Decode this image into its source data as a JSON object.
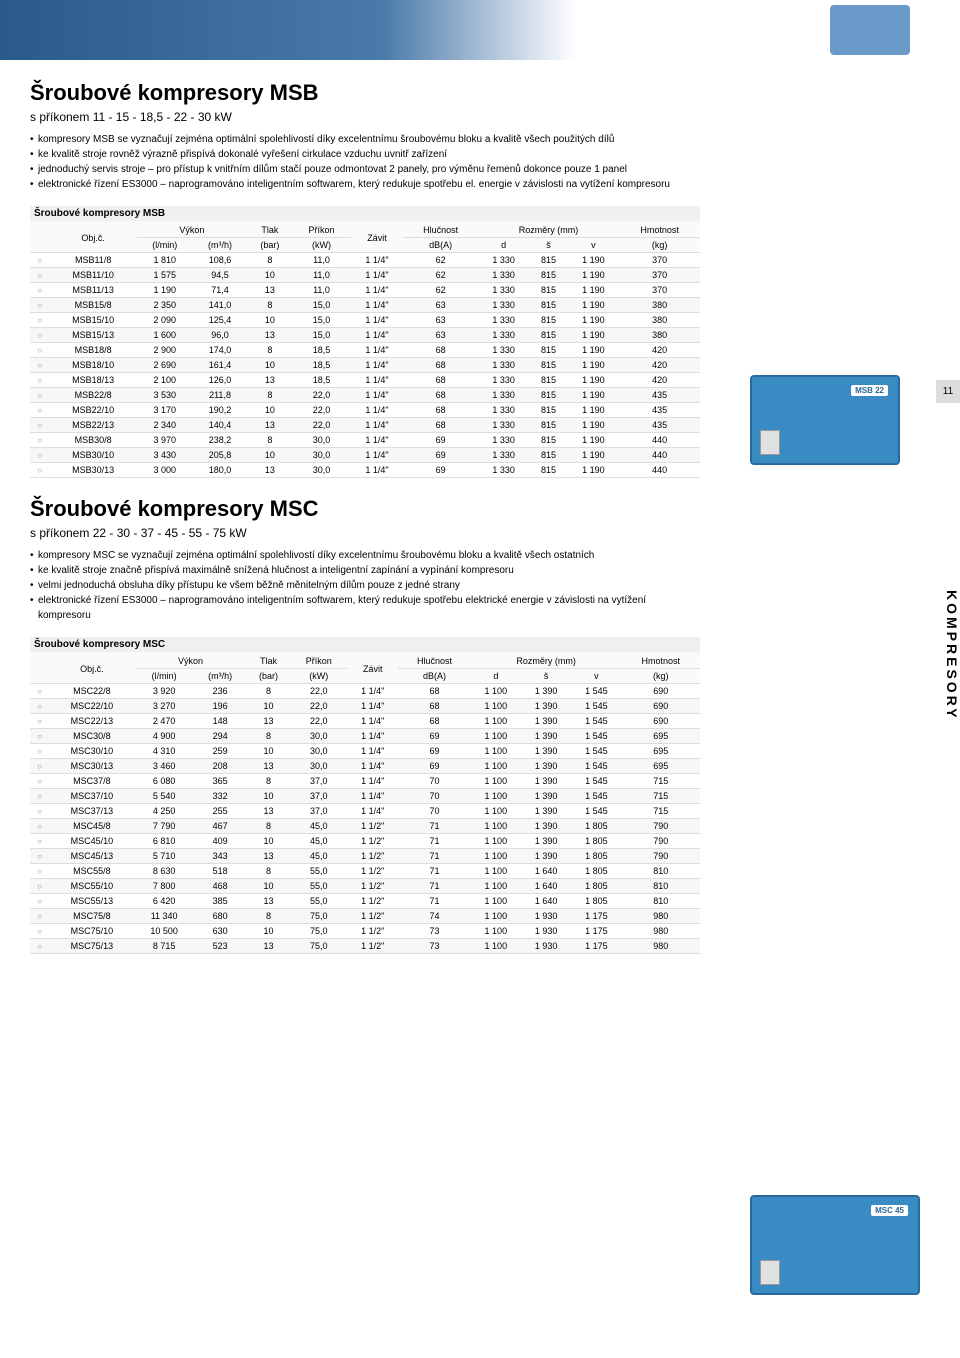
{
  "page_number": "11",
  "side_label": "KOMPRESORY",
  "msb": {
    "title": "Šroubové kompresory MSB",
    "subtitle": "s příkonem 11 - 15 - 18,5 - 22 - 30 kW",
    "bullets": [
      "kompresory MSB se vyznačují zejména optimální spolehlivostí díky excelentnímu šroubovému bloku a kvalitě všech použitých dílů",
      "ke kvalitě stroje rovněž výrazně přispívá dokonalé vyřešení cirkulace vzduchu uvnitř zařízení",
      "jednoduchý servis stroje – pro přístup k vnitřním dílům stačí pouze odmontovat 2 panely, pro výměnu řemenů dokonce pouze 1 panel",
      "elektronické řízení ES3000 – naprogramováno inteligentním softwarem, který redukuje spotřebu el. energie v závislosti na vytížení kompresoru"
    ],
    "table_title": "Šroubové kompresory MSB",
    "product_label": "MSB 22",
    "headers": {
      "objc": "Obj.č.",
      "vykon": "Výkon",
      "lmin": "(l/min)",
      "m3h": "(m³/h)",
      "tlak": "Tlak",
      "bar": "(bar)",
      "prikon": "Příkon",
      "kw": "(kW)",
      "zavit": "Závit",
      "hlucnost": "Hlučnost",
      "dba": "dB(A)",
      "rozmery": "Rozměry (mm)",
      "d": "d",
      "s": "š",
      "v": "v",
      "hmotnost": "Hmotnost",
      "kg": "(kg)"
    },
    "rows": [
      [
        "MSB11/8",
        "1 810",
        "108,6",
        "8",
        "11,0",
        "1 1/4\"",
        "62",
        "1 330",
        "815",
        "1 190",
        "370"
      ],
      [
        "MSB11/10",
        "1 575",
        "94,5",
        "10",
        "11,0",
        "1 1/4\"",
        "62",
        "1 330",
        "815",
        "1 190",
        "370"
      ],
      [
        "MSB11/13",
        "1 190",
        "71,4",
        "13",
        "11,0",
        "1 1/4\"",
        "62",
        "1 330",
        "815",
        "1 190",
        "370"
      ],
      [
        "MSB15/8",
        "2 350",
        "141,0",
        "8",
        "15,0",
        "1 1/4\"",
        "63",
        "1 330",
        "815",
        "1 190",
        "380"
      ],
      [
        "MSB15/10",
        "2 090",
        "125,4",
        "10",
        "15,0",
        "1 1/4\"",
        "63",
        "1 330",
        "815",
        "1 190",
        "380"
      ],
      [
        "MSB15/13",
        "1 600",
        "96,0",
        "13",
        "15,0",
        "1 1/4\"",
        "63",
        "1 330",
        "815",
        "1 190",
        "380"
      ],
      [
        "MSB18/8",
        "2 900",
        "174,0",
        "8",
        "18,5",
        "1 1/4\"",
        "68",
        "1 330",
        "815",
        "1 190",
        "420"
      ],
      [
        "MSB18/10",
        "2 690",
        "161,4",
        "10",
        "18,5",
        "1 1/4\"",
        "68",
        "1 330",
        "815",
        "1 190",
        "420"
      ],
      [
        "MSB18/13",
        "2 100",
        "126,0",
        "13",
        "18,5",
        "1 1/4\"",
        "68",
        "1 330",
        "815",
        "1 190",
        "420"
      ],
      [
        "MSB22/8",
        "3 530",
        "211,8",
        "8",
        "22,0",
        "1 1/4\"",
        "68",
        "1 330",
        "815",
        "1 190",
        "435"
      ],
      [
        "MSB22/10",
        "3 170",
        "190,2",
        "10",
        "22,0",
        "1 1/4\"",
        "68",
        "1 330",
        "815",
        "1 190",
        "435"
      ],
      [
        "MSB22/13",
        "2 340",
        "140,4",
        "13",
        "22,0",
        "1 1/4\"",
        "68",
        "1 330",
        "815",
        "1 190",
        "435"
      ],
      [
        "MSB30/8",
        "3 970",
        "238,2",
        "8",
        "30,0",
        "1 1/4\"",
        "69",
        "1 330",
        "815",
        "1 190",
        "440"
      ],
      [
        "MSB30/10",
        "3 430",
        "205,8",
        "10",
        "30,0",
        "1 1/4\"",
        "69",
        "1 330",
        "815",
        "1 190",
        "440"
      ],
      [
        "MSB30/13",
        "3 000",
        "180,0",
        "13",
        "30,0",
        "1 1/4\"",
        "69",
        "1 330",
        "815",
        "1 190",
        "440"
      ]
    ]
  },
  "msc": {
    "title": "Šroubové kompresory MSC",
    "subtitle": "s příkonem 22 - 30 - 37 - 45 - 55 - 75 kW",
    "bullets": [
      "kompresory MSC se vyznačují zejména optimální spolehlivostí díky excelentnímu šroubovému bloku a kvalitě všech ostatních",
      "ke kvalitě stroje značně přispívá maximálně snížená hlučnost a inteligentní zapínání a vypínání kompresoru",
      "velmi jednoduchá obsluha díky přístupu ke všem běžně měnitelným dílům pouze z jedné strany",
      "elektronické řízení ES3000 – naprogramováno inteligentním softwarem, který redukuje spotřebu elektrické energie v závislosti na vytížení kompresoru"
    ],
    "table_title": "Šroubové kompresory MSC",
    "product_label": "MSC 45",
    "rows": [
      [
        "MSC22/8",
        "3 920",
        "236",
        "8",
        "22,0",
        "1 1/4\"",
        "68",
        "1 100",
        "1 390",
        "1 545",
        "690"
      ],
      [
        "MSC22/10",
        "3 270",
        "196",
        "10",
        "22,0",
        "1 1/4\"",
        "68",
        "1 100",
        "1 390",
        "1 545",
        "690"
      ],
      [
        "MSC22/13",
        "2 470",
        "148",
        "13",
        "22,0",
        "1 1/4\"",
        "68",
        "1 100",
        "1 390",
        "1 545",
        "690"
      ],
      [
        "MSC30/8",
        "4 900",
        "294",
        "8",
        "30,0",
        "1 1/4\"",
        "69",
        "1 100",
        "1 390",
        "1 545",
        "695"
      ],
      [
        "MSC30/10",
        "4 310",
        "259",
        "10",
        "30,0",
        "1 1/4\"",
        "69",
        "1 100",
        "1 390",
        "1 545",
        "695"
      ],
      [
        "MSC30/13",
        "3 460",
        "208",
        "13",
        "30,0",
        "1 1/4\"",
        "69",
        "1 100",
        "1 390",
        "1 545",
        "695"
      ],
      [
        "MSC37/8",
        "6 080",
        "365",
        "8",
        "37,0",
        "1 1/4\"",
        "70",
        "1 100",
        "1 390",
        "1 545",
        "715"
      ],
      [
        "MSC37/10",
        "5 540",
        "332",
        "10",
        "37,0",
        "1 1/4\"",
        "70",
        "1 100",
        "1 390",
        "1 545",
        "715"
      ],
      [
        "MSC37/13",
        "4 250",
        "255",
        "13",
        "37,0",
        "1 1/4\"",
        "70",
        "1 100",
        "1 390",
        "1 545",
        "715"
      ],
      [
        "MSC45/8",
        "7 790",
        "467",
        "8",
        "45,0",
        "1 1/2\"",
        "71",
        "1 100",
        "1 390",
        "1 805",
        "790"
      ],
      [
        "MSC45/10",
        "6 810",
        "409",
        "10",
        "45,0",
        "1 1/2\"",
        "71",
        "1 100",
        "1 390",
        "1 805",
        "790"
      ],
      [
        "MSC45/13",
        "5 710",
        "343",
        "13",
        "45,0",
        "1 1/2\"",
        "71",
        "1 100",
        "1 390",
        "1 805",
        "790"
      ],
      [
        "MSC55/8",
        "8 630",
        "518",
        "8",
        "55,0",
        "1 1/2\"",
        "71",
        "1 100",
        "1 640",
        "1 805",
        "810"
      ],
      [
        "MSC55/10",
        "7 800",
        "468",
        "10",
        "55,0",
        "1 1/2\"",
        "71",
        "1 100",
        "1 640",
        "1 805",
        "810"
      ],
      [
        "MSC55/13",
        "6 420",
        "385",
        "13",
        "55,0",
        "1 1/2\"",
        "71",
        "1 100",
        "1 640",
        "1 805",
        "810"
      ],
      [
        "MSC75/8",
        "11 340",
        "680",
        "8",
        "75,0",
        "1 1/2\"",
        "74",
        "1 100",
        "1 930",
        "1 175",
        "980"
      ],
      [
        "MSC75/10",
        "10 500",
        "630",
        "10",
        "75,0",
        "1 1/2\"",
        "73",
        "1 100",
        "1 930",
        "1 175",
        "980"
      ],
      [
        "MSC75/13",
        "8 715",
        "523",
        "13",
        "75,0",
        "1 1/2\"",
        "73",
        "1 100",
        "1 930",
        "1 175",
        "980"
      ]
    ]
  },
  "style": {
    "accent_color": "#3a8ac4",
    "table_border": "#dddddd",
    "table_even_bg": "#f7f7f7",
    "header_bg": "#fafafa"
  }
}
